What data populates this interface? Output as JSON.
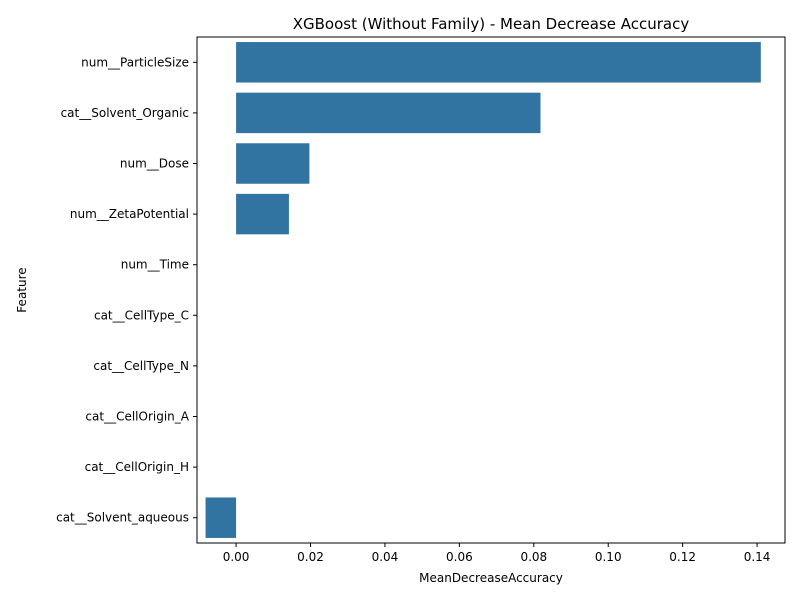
{
  "chart_data": {
    "type": "bar",
    "orientation": "horizontal",
    "title": "XGBoost (Without Family) - Mean Decrease Accuracy",
    "xlabel": "MeanDecreaseAccuracy",
    "ylabel": "Feature",
    "categories": [
      "num__ParticleSize",
      "cat__Solvent_Organic",
      "num__Dose",
      "num__ZetaPotential",
      "num__Time",
      "cat__CellType_C",
      "cat__CellType_N",
      "cat__CellOrigin_A",
      "cat__CellOrigin_H",
      "cat__Solvent_aqueous"
    ],
    "values": [
      0.141,
      0.0818,
      0.0197,
      0.0142,
      0,
      0,
      0,
      0,
      0,
      -0.0082
    ],
    "xlim": [
      -0.0105,
      0.1475
    ],
    "xticks": [
      "0.00",
      "0.02",
      "0.04",
      "0.06",
      "0.08",
      "0.10",
      "0.12",
      "0.14"
    ],
    "grid": false,
    "bar_color": "#3274a1"
  }
}
